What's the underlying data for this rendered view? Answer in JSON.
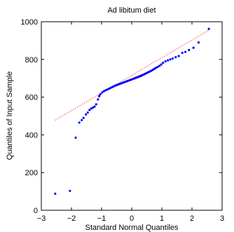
{
  "chart_data": {
    "type": "scatter",
    "title": "Ad libitum diet",
    "xlabel": "Standard Normal Quantiles",
    "ylabel": "Quantiles of Input Sample",
    "xlim": [
      -3,
      3
    ],
    "ylim": [
      0,
      1000
    ],
    "x_ticks": [
      "−3",
      "−2",
      "−1",
      "0",
      "1",
      "2",
      "3"
    ],
    "y_ticks": [
      "0",
      "200",
      "400",
      "600",
      "800",
      "1000"
    ],
    "grid": false,
    "legend": "none",
    "series": [
      {
        "points": [
          [
            -2.54,
            88
          ],
          [
            -2.05,
            103
          ],
          [
            -1.86,
            385
          ],
          [
            -1.74,
            465
          ],
          [
            -1.66,
            478
          ],
          [
            -1.6,
            490
          ],
          [
            -1.52,
            508
          ],
          [
            -1.46,
            518
          ],
          [
            -1.4,
            532
          ],
          [
            -1.34,
            540
          ],
          [
            -1.28,
            545
          ],
          [
            -1.23,
            550
          ],
          [
            -1.18,
            562
          ],
          [
            -1.12,
            588
          ],
          [
            -1.08,
            605
          ],
          [
            -1.04,
            615
          ],
          [
            -0.98,
            625
          ],
          [
            -0.92,
            632
          ],
          [
            -0.86,
            637
          ],
          [
            -0.8,
            641
          ],
          [
            -0.75,
            645
          ],
          [
            -0.7,
            649
          ],
          [
            -0.65,
            653
          ],
          [
            -0.6,
            657
          ],
          [
            -0.55,
            661
          ],
          [
            -0.5,
            664
          ],
          [
            -0.45,
            667
          ],
          [
            -0.4,
            670
          ],
          [
            -0.35,
            673
          ],
          [
            -0.3,
            676
          ],
          [
            -0.25,
            679
          ],
          [
            -0.2,
            682
          ],
          [
            -0.15,
            685
          ],
          [
            -0.1,
            688
          ],
          [
            -0.05,
            691
          ],
          [
            0.0,
            694
          ],
          [
            0.05,
            697
          ],
          [
            0.1,
            700
          ],
          [
            0.15,
            703
          ],
          [
            0.2,
            706
          ],
          [
            0.25,
            709
          ],
          [
            0.3,
            712
          ],
          [
            0.35,
            716
          ],
          [
            0.4,
            720
          ],
          [
            0.45,
            724
          ],
          [
            0.5,
            728
          ],
          [
            0.55,
            732
          ],
          [
            0.6,
            736
          ],
          [
            0.65,
            740
          ],
          [
            0.7,
            745
          ],
          [
            0.75,
            750
          ],
          [
            0.8,
            755
          ],
          [
            0.86,
            760
          ],
          [
            0.92,
            766
          ],
          [
            0.98,
            773
          ],
          [
            1.04,
            782
          ],
          [
            1.12,
            790
          ],
          [
            1.2,
            795
          ],
          [
            1.28,
            800
          ],
          [
            1.36,
            805
          ],
          [
            1.46,
            812
          ],
          [
            1.56,
            818
          ],
          [
            1.68,
            835
          ],
          [
            1.78,
            840
          ],
          [
            1.9,
            850
          ],
          [
            2.05,
            862
          ],
          [
            2.22,
            890
          ],
          [
            2.56,
            962
          ]
        ]
      }
    ],
    "reference_line": {
      "x": [
        -2.54,
        2.56
      ],
      "y": [
        478,
        955
      ]
    },
    "fit_segment": {
      "x": [
        -0.67,
        0.67
      ],
      "y": [
        651,
        742
      ]
    },
    "colors": {
      "points": "#0000ff",
      "reference_line": "#ff0000",
      "axes": "#000000",
      "background": "#ffffff"
    }
  }
}
